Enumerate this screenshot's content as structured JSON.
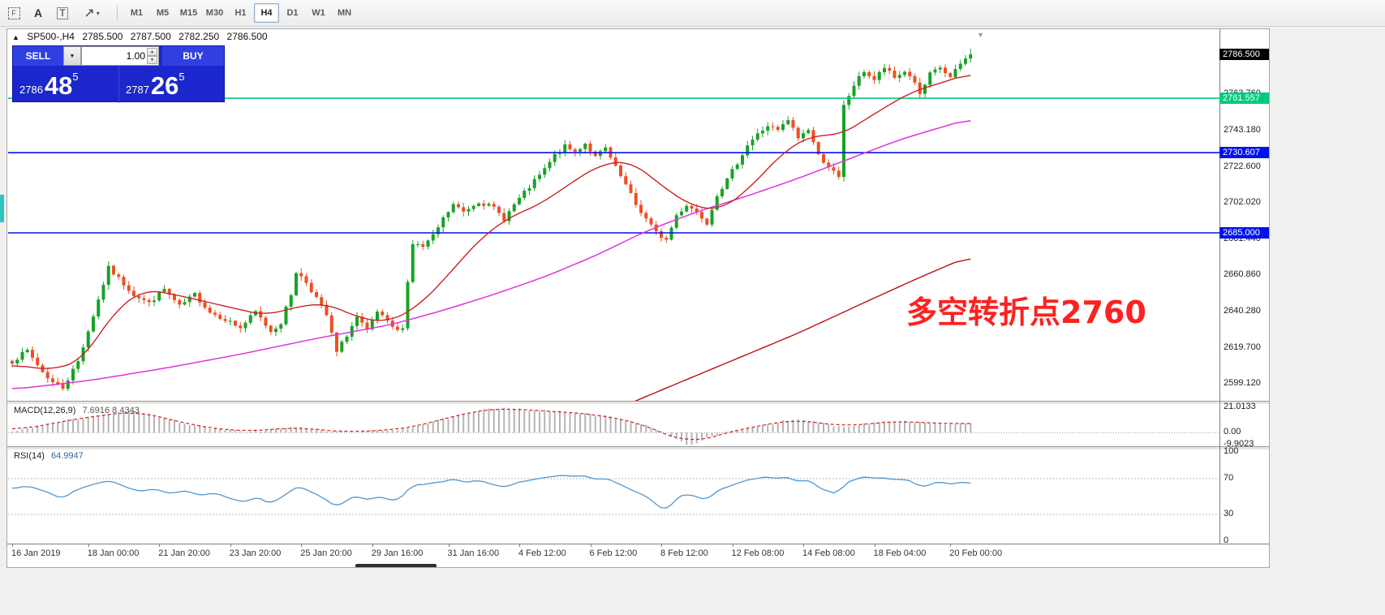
{
  "toolbar": {
    "tools": [
      {
        "name": "selection-frame-tool",
        "glyph": "F"
      },
      {
        "name": "text-label-tool",
        "glyph": "A"
      },
      {
        "name": "text-box-tool",
        "glyph": "T"
      },
      {
        "name": "objects-tool",
        "glyph": "↗",
        "caret": "▾"
      }
    ],
    "timeframes": [
      {
        "label": "M1",
        "active": false
      },
      {
        "label": "M5",
        "active": false
      },
      {
        "label": "M15",
        "active": false
      },
      {
        "label": "M30",
        "active": false
      },
      {
        "label": "H1",
        "active": false
      },
      {
        "label": "H4",
        "active": true
      },
      {
        "label": "D1",
        "active": false
      },
      {
        "label": "W1",
        "active": false
      },
      {
        "label": "MN",
        "active": false
      }
    ]
  },
  "header": {
    "marker": "▲",
    "symbol": "SP500-,H4",
    "open": "2785.500",
    "high": "2787.500",
    "low": "2782.250",
    "close": "2786.500"
  },
  "trade_panel": {
    "sell_label": "SELL",
    "buy_label": "BUY",
    "volume": "1.00",
    "sell_price": {
      "prefix": "2786",
      "big": "48",
      "sup": "5"
    },
    "buy_price": {
      "prefix": "2787",
      "big": "26",
      "sup": "5"
    }
  },
  "annotation": {
    "text": "多空转折点2760",
    "color": "#ff2020"
  },
  "chart_data": {
    "type": "candlestick",
    "symbol": "SP500-",
    "timeframe": "H4",
    "ohlc_current": {
      "open": 2785.5,
      "high": 2787.5,
      "low": 2782.25,
      "close": 2786.5
    },
    "visible_candles": 190,
    "colors": {
      "up": "#17a325",
      "down": "#ef4e22",
      "ma_fast": "#cc2222",
      "ma_medium": "#dd33dd",
      "ma_slow": "#bb1111",
      "macd_bar": "#b4b4b4",
      "macd_signal": "#d02020",
      "rsi": "#4e97d1",
      "hline_green": "#00cb7d",
      "hline_blue": "#0013ee",
      "current_tag_bg": "#000000"
    },
    "current_price_tag": {
      "price": 2786.5,
      "label": "2786.500"
    },
    "hlines": [
      {
        "price": 2761.557,
        "label": "2761.557",
        "color": "#00cb7d"
      },
      {
        "price": 2730.607,
        "label": "2730.607",
        "color": "#0013ee"
      },
      {
        "price": 2685.0,
        "label": "2685.000",
        "color": "#0013ee"
      }
    ],
    "price_axis_ticks": [
      {
        "price": 2763.76,
        "label": "2763.760"
      },
      {
        "price": 2743.18,
        "label": "2743.180"
      },
      {
        "price": 2722.6,
        "label": "2722.600"
      },
      {
        "price": 2702.02,
        "label": "2702.020"
      },
      {
        "price": 2681.44,
        "label": "2681.440"
      },
      {
        "price": 2660.86,
        "label": "2660.860"
      },
      {
        "price": 2640.28,
        "label": "2640.280"
      },
      {
        "price": 2619.7,
        "label": "2619.700"
      },
      {
        "price": 2599.12,
        "label": "2599.120"
      }
    ],
    "close_path": [
      [
        0,
        2612
      ],
      [
        3,
        2618
      ],
      [
        6,
        2606
      ],
      [
        8,
        2600
      ],
      [
        10,
        2597
      ],
      [
        13,
        2612
      ],
      [
        16,
        2638
      ],
      [
        19,
        2665
      ],
      [
        21,
        2659
      ],
      [
        24,
        2650
      ],
      [
        27,
        2645
      ],
      [
        30,
        2653
      ],
      [
        33,
        2643
      ],
      [
        36,
        2650
      ],
      [
        39,
        2640
      ],
      [
        42,
        2636
      ],
      [
        45,
        2631
      ],
      [
        48,
        2640
      ],
      [
        51,
        2629
      ],
      [
        53,
        2634
      ],
      [
        55,
        2650
      ],
      [
        56,
        2663
      ],
      [
        58,
        2657
      ],
      [
        60,
        2648
      ],
      [
        62,
        2638
      ],
      [
        64,
        2617
      ],
      [
        66,
        2627
      ],
      [
        68,
        2637
      ],
      [
        70,
        2629
      ],
      [
        72,
        2640
      ],
      [
        74,
        2634
      ],
      [
        76,
        2629
      ],
      [
        77,
        2632
      ],
      [
        78,
        2657
      ],
      [
        79,
        2679
      ],
      [
        81,
        2677
      ],
      [
        83,
        2683
      ],
      [
        85,
        2693
      ],
      [
        87,
        2701
      ],
      [
        89,
        2697
      ],
      [
        92,
        2703
      ],
      [
        95,
        2699
      ],
      [
        97,
        2693
      ],
      [
        99,
        2701
      ],
      [
        102,
        2711
      ],
      [
        105,
        2721
      ],
      [
        107,
        2729
      ],
      [
        109,
        2734
      ],
      [
        111,
        2731
      ],
      [
        113,
        2736
      ],
      [
        115,
        2728
      ],
      [
        117,
        2733
      ],
      [
        119,
        2722
      ],
      [
        121,
        2712
      ],
      [
        123,
        2701
      ],
      [
        125,
        2693
      ],
      [
        127,
        2685
      ],
      [
        129,
        2681
      ],
      [
        131,
        2695
      ],
      [
        133,
        2701
      ],
      [
        135,
        2697
      ],
      [
        137,
        2691
      ],
      [
        139,
        2707
      ],
      [
        141,
        2715
      ],
      [
        143,
        2725
      ],
      [
        145,
        2735
      ],
      [
        147,
        2741
      ],
      [
        149,
        2746
      ],
      [
        151,
        2743
      ],
      [
        153,
        2749
      ],
      [
        155,
        2739
      ],
      [
        157,
        2744
      ],
      [
        159,
        2729
      ],
      [
        161,
        2723
      ],
      [
        163,
        2716
      ],
      [
        164,
        2757
      ],
      [
        166,
        2769
      ],
      [
        168,
        2777
      ],
      [
        170,
        2772
      ],
      [
        172,
        2779
      ],
      [
        174,
        2773
      ],
      [
        176,
        2777
      ],
      [
        178,
        2771
      ],
      [
        179,
        2763
      ],
      [
        181,
        2775
      ],
      [
        183,
        2779
      ],
      [
        185,
        2773
      ],
      [
        187,
        2781
      ],
      [
        189,
        2786.5
      ]
    ],
    "ma_fast": [
      [
        0,
        2610
      ],
      [
        8,
        2607
      ],
      [
        14,
        2613
      ],
      [
        20,
        2640
      ],
      [
        26,
        2653
      ],
      [
        32,
        2650
      ],
      [
        38,
        2646
      ],
      [
        44,
        2642
      ],
      [
        50,
        2638
      ],
      [
        56,
        2643
      ],
      [
        62,
        2645
      ],
      [
        68,
        2637
      ],
      [
        74,
        2634
      ],
      [
        80,
        2643
      ],
      [
        86,
        2661
      ],
      [
        92,
        2681
      ],
      [
        98,
        2694
      ],
      [
        104,
        2701
      ],
      [
        110,
        2713
      ],
      [
        116,
        2724
      ],
      [
        122,
        2726
      ],
      [
        128,
        2712
      ],
      [
        134,
        2700
      ],
      [
        140,
        2698
      ],
      [
        146,
        2712
      ],
      [
        152,
        2731
      ],
      [
        158,
        2741
      ],
      [
        163,
        2740
      ],
      [
        168,
        2749
      ],
      [
        173,
        2758
      ],
      [
        178,
        2766
      ],
      [
        183,
        2770
      ],
      [
        189,
        2776
      ]
    ],
    "ma_medium": [
      [
        0,
        2596
      ],
      [
        15,
        2601
      ],
      [
        30,
        2608
      ],
      [
        45,
        2616
      ],
      [
        60,
        2625
      ],
      [
        75,
        2633
      ],
      [
        85,
        2641
      ],
      [
        95,
        2650
      ],
      [
        105,
        2660
      ],
      [
        115,
        2672
      ],
      [
        125,
        2686
      ],
      [
        135,
        2697
      ],
      [
        145,
        2706
      ],
      [
        155,
        2716
      ],
      [
        165,
        2727
      ],
      [
        175,
        2738
      ],
      [
        182,
        2744
      ],
      [
        189,
        2750
      ]
    ],
    "ma_slow": [
      [
        112,
        2576
      ],
      [
        125,
        2592
      ],
      [
        140,
        2610
      ],
      [
        155,
        2628
      ],
      [
        170,
        2648
      ],
      [
        180,
        2661
      ],
      [
        189,
        2672
      ]
    ],
    "macd": {
      "label": "MACD(12,26,9)",
      "values_text": "7.6916 8.4343",
      "scale_max": 21.0133,
      "scale_min": -9.9023,
      "axis": [
        {
          "v": 21.0133,
          "label": "21.0133"
        },
        {
          "v": 0,
          "label": "0.00"
        },
        {
          "v": -9.9023,
          "label": "-9.9023"
        }
      ],
      "path": [
        [
          0,
          1.5
        ],
        [
          6,
          6
        ],
        [
          12,
          11
        ],
        [
          18,
          15
        ],
        [
          24,
          17.5
        ],
        [
          27,
          16
        ],
        [
          31,
          11
        ],
        [
          36,
          6
        ],
        [
          41,
          2.5
        ],
        [
          46,
          1
        ],
        [
          50,
          2
        ],
        [
          54,
          4
        ],
        [
          57,
          4.5
        ],
        [
          60,
          2.5
        ],
        [
          63,
          0.8
        ],
        [
          67,
          0.6
        ],
        [
          71,
          1.5
        ],
        [
          75,
          2.2
        ],
        [
          78,
          4
        ],
        [
          82,
          8
        ],
        [
          86,
          12
        ],
        [
          90,
          16
        ],
        [
          94,
          19.5
        ],
        [
          97,
          21
        ],
        [
          101,
          19
        ],
        [
          105,
          18
        ],
        [
          109,
          17
        ],
        [
          113,
          15.5
        ],
        [
          117,
          13.5
        ],
        [
          121,
          11
        ],
        [
          124,
          7.5
        ],
        [
          127,
          3
        ],
        [
          129,
          -1
        ],
        [
          131,
          -6
        ],
        [
          133,
          -9.9
        ],
        [
          135,
          -8
        ],
        [
          137,
          -5
        ],
        [
          139,
          -2.2
        ],
        [
          141,
          0.5
        ],
        [
          144,
          3
        ],
        [
          148,
          6.5
        ],
        [
          152,
          9.5
        ],
        [
          155,
          10.5
        ],
        [
          158,
          9
        ],
        [
          161,
          7
        ],
        [
          163,
          5
        ],
        [
          166,
          6
        ],
        [
          170,
          8.5
        ],
        [
          174,
          10
        ],
        [
          178,
          9
        ],
        [
          182,
          7.8
        ],
        [
          186,
          7.3
        ],
        [
          189,
          7.7
        ]
      ]
    },
    "rsi": {
      "label": "RSI(14)",
      "value_text": "64.9947",
      "levels": [
        70,
        30
      ],
      "axis": [
        {
          "v": 100,
          "label": "100"
        },
        {
          "v": 70,
          "label": "70"
        },
        {
          "v": 30,
          "label": "30"
        },
        {
          "v": 0,
          "label": "0"
        }
      ],
      "path": [
        [
          0,
          58
        ],
        [
          3,
          62
        ],
        [
          6,
          56
        ],
        [
          10,
          48
        ],
        [
          13,
          58
        ],
        [
          16,
          64
        ],
        [
          19,
          68
        ],
        [
          22,
          61
        ],
        [
          25,
          56
        ],
        [
          28,
          59
        ],
        [
          31,
          53
        ],
        [
          34,
          57
        ],
        [
          37,
          51
        ],
        [
          40,
          54
        ],
        [
          43,
          48
        ],
        [
          46,
          44
        ],
        [
          48,
          50
        ],
        [
          51,
          42
        ],
        [
          54,
          52
        ],
        [
          56,
          62
        ],
        [
          58,
          58
        ],
        [
          60,
          52
        ],
        [
          62,
          46
        ],
        [
          64,
          38
        ],
        [
          66,
          46
        ],
        [
          68,
          51
        ],
        [
          70,
          46
        ],
        [
          72,
          51
        ],
        [
          74,
          48
        ],
        [
          76,
          45
        ],
        [
          78,
          56
        ],
        [
          79,
          63
        ],
        [
          82,
          64
        ],
        [
          85,
          67
        ],
        [
          87,
          70
        ],
        [
          89,
          65
        ],
        [
          92,
          68
        ],
        [
          95,
          63
        ],
        [
          97,
          60
        ],
        [
          99,
          64
        ],
        [
          102,
          68
        ],
        [
          105,
          71
        ],
        [
          107,
          73
        ],
        [
          109,
          74
        ],
        [
          111,
          72
        ],
        [
          113,
          74
        ],
        [
          115,
          69
        ],
        [
          117,
          71
        ],
        [
          119,
          65
        ],
        [
          121,
          60
        ],
        [
          123,
          55
        ],
        [
          125,
          50
        ],
        [
          127,
          42
        ],
        [
          129,
          33
        ],
        [
          131,
          48
        ],
        [
          133,
          53
        ],
        [
          135,
          50
        ],
        [
          137,
          46
        ],
        [
          139,
          57
        ],
        [
          141,
          61
        ],
        [
          143,
          65
        ],
        [
          145,
          69
        ],
        [
          147,
          71
        ],
        [
          149,
          72
        ],
        [
          151,
          70
        ],
        [
          153,
          73
        ],
        [
          155,
          66
        ],
        [
          157,
          69
        ],
        [
          159,
          60
        ],
        [
          161,
          56
        ],
        [
          163,
          52
        ],
        [
          164,
          64
        ],
        [
          166,
          69
        ],
        [
          168,
          72
        ],
        [
          170,
          69
        ],
        [
          172,
          72
        ],
        [
          174,
          68
        ],
        [
          176,
          70
        ],
        [
          178,
          66
        ],
        [
          179,
          60
        ],
        [
          181,
          64
        ],
        [
          183,
          67
        ],
        [
          185,
          63
        ],
        [
          187,
          66
        ],
        [
          189,
          65
        ]
      ]
    },
    "time_axis": [
      [
        0,
        "16 Jan 2019"
      ],
      [
        15,
        "18 Jan 00:00"
      ],
      [
        29,
        "21 Jan 20:00"
      ],
      [
        43,
        "23 Jan 20:00"
      ],
      [
        57,
        "25 Jan 20:00"
      ],
      [
        71,
        "29 Jan 16:00"
      ],
      [
        86,
        "31 Jan 16:00"
      ],
      [
        100,
        "4 Feb 12:00"
      ],
      [
        114,
        "6 Feb 12:00"
      ],
      [
        128,
        "8 Feb 12:00"
      ],
      [
        142,
        "12 Feb 08:00"
      ],
      [
        156,
        "14 Feb 08:00"
      ],
      [
        170,
        "18 Feb 04:00"
      ],
      [
        185,
        "20 Feb 00:00"
      ]
    ]
  }
}
